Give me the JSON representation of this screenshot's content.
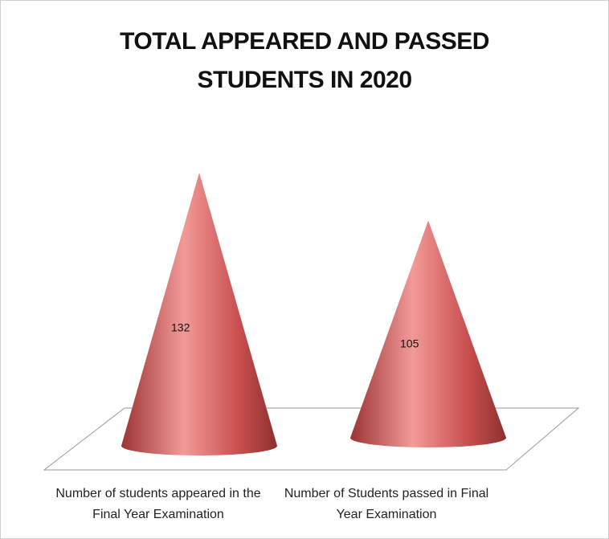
{
  "chart_data": {
    "type": "cone",
    "title": "TOTAL APPEARED AND PASSED STUDENTS IN 2020",
    "categories": [
      "Number of students appeared in the Final Year Examination",
      "Number of Students passed in Final Year Examination"
    ],
    "values": [
      132,
      105
    ],
    "color": "#c9504f"
  }
}
